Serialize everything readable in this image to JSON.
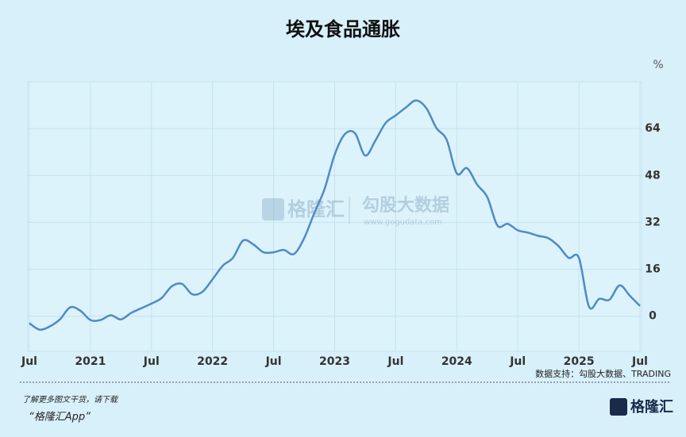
{
  "chart_data": {
    "type": "line",
    "title": "埃及食品通胀",
    "y_unit": "%",
    "source": "数据支持：勾股大数据、TRADING",
    "x": [
      "2020-07",
      "2020-08",
      "2020-09",
      "2020-10",
      "2020-11",
      "2020-12",
      "2021-01",
      "2021-02",
      "2021-03",
      "2021-04",
      "2021-05",
      "2021-06",
      "2021-07",
      "2021-08",
      "2021-09",
      "2021-10",
      "2021-11",
      "2021-12",
      "2022-01",
      "2022-02",
      "2022-03",
      "2022-04",
      "2022-05",
      "2022-06",
      "2022-07",
      "2022-08",
      "2022-09",
      "2022-10",
      "2022-11",
      "2022-12",
      "2023-01",
      "2023-02",
      "2023-03",
      "2023-04",
      "2023-05",
      "2023-06",
      "2023-07",
      "2023-08",
      "2023-09",
      "2023-10",
      "2023-11",
      "2023-12",
      "2024-01",
      "2024-02",
      "2024-03",
      "2024-04",
      "2024-05",
      "2024-06",
      "2024-07",
      "2024-08",
      "2024-09",
      "2024-10",
      "2024-11",
      "2024-12",
      "2025-01",
      "2025-02",
      "2025-03",
      "2025-04",
      "2025-05",
      "2025-06",
      "2025-07"
    ],
    "series": [
      {
        "name": "埃及食品通胀",
        "color": "#4f8ac4",
        "values": [
          -2.4,
          -4.6,
          -3.5,
          -1.1,
          3.0,
          1.9,
          -1.3,
          -1.3,
          0.3,
          -1.1,
          1.1,
          2.7,
          4.3,
          6.2,
          10.2,
          11.0,
          7.5,
          8.3,
          12.6,
          17.2,
          19.9,
          25.8,
          24.5,
          21.8,
          21.8,
          22.6,
          21.2,
          26.6,
          35.2,
          43.3,
          55.1,
          62.1,
          62.4,
          54.8,
          59.9,
          65.9,
          68.5,
          71.2,
          73.6,
          71.0,
          64.2,
          60.2,
          48.7,
          50.5,
          44.9,
          40.6,
          30.9,
          31.5,
          29.3,
          28.5,
          27.4,
          26.6,
          23.9,
          19.9,
          19.9,
          3.2,
          5.9,
          5.6,
          10.5,
          7.0,
          3.5
        ]
      }
    ],
    "xlim": [
      "2020-07",
      "2025-07"
    ],
    "xticks": [
      {
        "value": "2020-07",
        "label": "Jul"
      },
      {
        "value": "2021-01",
        "label": "2021"
      },
      {
        "value": "2021-07",
        "label": "Jul"
      },
      {
        "value": "2022-01",
        "label": "2022"
      },
      {
        "value": "2022-07",
        "label": "Jul"
      },
      {
        "value": "2023-01",
        "label": "2023"
      },
      {
        "value": "2023-07",
        "label": "Jul"
      },
      {
        "value": "2024-01",
        "label": "2024"
      },
      {
        "value": "2024-07",
        "label": "Jul"
      },
      {
        "value": "2025-01",
        "label": "2025"
      },
      {
        "value": "2025-07",
        "label": "Jul"
      }
    ],
    "ylim": [
      -12,
      80
    ],
    "yticks": [
      0,
      16,
      32,
      48,
      64
    ],
    "grid": true
  },
  "watermark": {
    "brand": "格隆汇",
    "data": "勾股大数据",
    "url": "www.gogudata.com"
  },
  "footer": {
    "note": "了解更多图文干货，请下载",
    "app": "“格隆汇App”",
    "logo": "格隆汇"
  }
}
